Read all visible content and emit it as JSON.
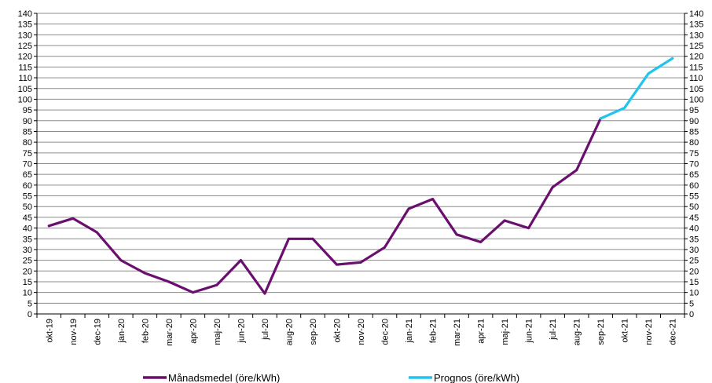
{
  "chart_data": {
    "type": "line",
    "categories": [
      "okt-19",
      "nov-19",
      "dec-19",
      "jan-20",
      "feb-20",
      "mar-20",
      "apr-20",
      "maj-20",
      "jun-20",
      "jul-20",
      "aug-20",
      "sep-20",
      "okt-20",
      "nov-20",
      "dec-20",
      "jan-21",
      "feb-21",
      "mar-21",
      "apr-21",
      "maj-21",
      "jun-21",
      "jul-21",
      "aug-21",
      "sep-21",
      "okt-21",
      "nov-21",
      "dec-21"
    ],
    "series": [
      {
        "name": "Månadsmedel (öre/kWh)",
        "color": "#6b0f6f",
        "values": [
          41,
          44.5,
          38,
          25,
          19,
          15,
          10,
          13.5,
          25,
          9.5,
          35,
          35,
          23,
          24,
          31,
          49,
          53.5,
          37,
          33.5,
          43.5,
          40,
          59,
          67,
          91,
          null,
          null,
          null
        ]
      },
      {
        "name": "Prognos (öre/kWh)",
        "color": "#1fc4f0",
        "values": [
          null,
          null,
          null,
          null,
          null,
          null,
          null,
          null,
          null,
          null,
          null,
          null,
          null,
          null,
          null,
          null,
          null,
          null,
          null,
          null,
          null,
          null,
          null,
          91,
          96,
          112,
          119
        ]
      }
    ],
    "yticks": [
      "0",
      "5",
      "10",
      "15",
      "20",
      "25",
      "30",
      "35",
      "40",
      "45",
      "50",
      "55",
      "60",
      "65",
      "70",
      "75",
      "80",
      "85",
      "90",
      "95",
      "100",
      "105",
      "110",
      "115",
      "120",
      "125",
      "130",
      "135",
      "140"
    ],
    "ylim": [
      0,
      140
    ],
    "grid": true,
    "legend_position": "bottom"
  }
}
